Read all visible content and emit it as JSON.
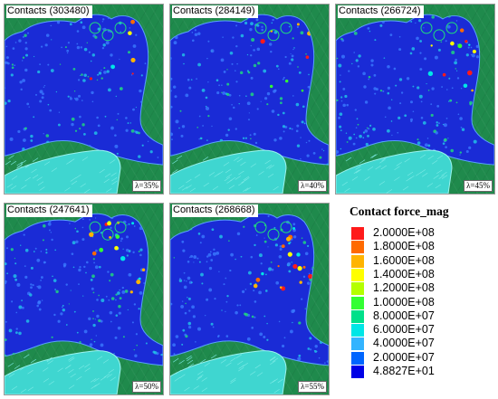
{
  "panels": [
    {
      "title": "Contacts (303480)",
      "lambda": "λ=35%"
    },
    {
      "title": "Contacts (284149)",
      "lambda": "λ=40%"
    },
    {
      "title": "Contacts (266724)",
      "lambda": "λ=45%"
    },
    {
      "title": "Contacts (247641)",
      "lambda": "λ=50%"
    },
    {
      "title": "Contacts (268668)",
      "lambda": "λ=55%"
    }
  ],
  "legend": {
    "title": "Contact force_mag",
    "entries": [
      {
        "label": "2.0000E+08",
        "color": "#ff1a1a"
      },
      {
        "label": "1.8000E+08",
        "color": "#ff6a00"
      },
      {
        "label": "1.6000E+08",
        "color": "#ffb400"
      },
      {
        "label": "1.4000E+08",
        "color": "#ffff00"
      },
      {
        "label": "1.2000E+08",
        "color": "#b4ff00"
      },
      {
        "label": "1.0000E+08",
        "color": "#33ff33"
      },
      {
        "label": "8.0000E+07",
        "color": "#00e08a"
      },
      {
        "label": "6.0000E+07",
        "color": "#00e6e6"
      },
      {
        "label": "4.0000E+07",
        "color": "#33b4ff"
      },
      {
        "label": "2.0000E+07",
        "color": "#0066ff"
      },
      {
        "label": "4.8827E+01",
        "color": "#0000e6"
      }
    ]
  },
  "colors": {
    "background_green": "#1f8a4c",
    "particle_blue": "#1a2bd6",
    "wheel_cyan": "#3fd6d0"
  }
}
